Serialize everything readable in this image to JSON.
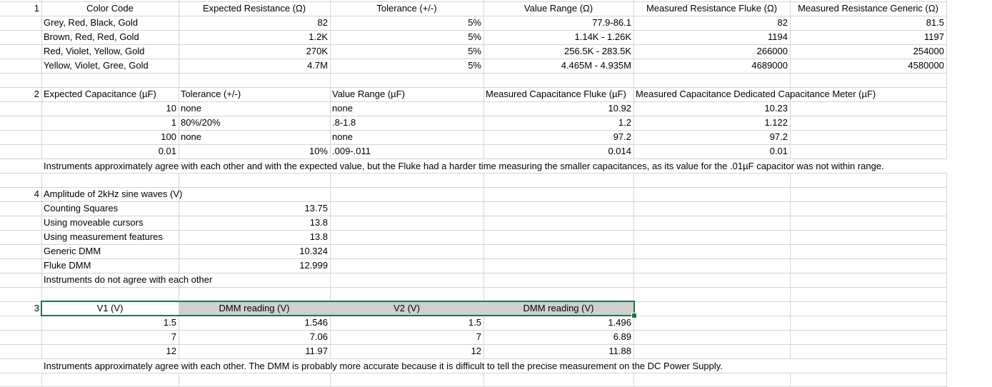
{
  "section1": {
    "num": "1",
    "headers": [
      "Color Code",
      "Expected Resistance (Ω)",
      "Tolerance (+/-)",
      "Value Range (Ω)",
      "Measured Resistance Fluke (Ω)",
      "Measured Resistance Generic (Ω)"
    ],
    "rows": [
      [
        "Grey, Red, Black, Gold",
        "82",
        "5%",
        "77.9-86.1",
        "82",
        "81.5"
      ],
      [
        "Brown, Red, Red, Gold",
        "1.2K",
        "5%",
        "1.14K - 1.26K",
        "1194",
        "1197"
      ],
      [
        "Red, Violet, Yellow, Gold",
        "270K",
        "5%",
        "256.5K - 283.5K",
        "266000",
        "254000"
      ],
      [
        "Yellow, Violet, Gree, Gold",
        "4.7M",
        "5%",
        "4.465M - 4.935M",
        "4689000",
        "4580000"
      ]
    ]
  },
  "section2": {
    "num": "2",
    "headers": [
      "Expected Capacitance (µF)",
      "Tolerance (+/-)",
      "Value Range (µF)",
      "Measured Capacitance Fluke (µF)",
      "Measured Capacitance Dedicated Capacitance Meter (µF)"
    ],
    "rows": [
      [
        "10",
        "none",
        "none",
        "10.92",
        "10.23"
      ],
      [
        "1",
        "80%/20%",
        ".8-1.8",
        "1.2",
        "1.122"
      ],
      [
        "100",
        "none",
        "none",
        "97.2",
        "97.2"
      ],
      [
        "0.01",
        "10%",
        ".009-.011",
        "0.014",
        "0.01"
      ]
    ],
    "note": "Instruments approximately agree with each other and with the expected value, but the Fluke had a harder time measuring the smaller capacitances, as its value for the .01µF capacitor was not within range."
  },
  "section4": {
    "num": "4",
    "title": "Amplitude of 2kHz sine waves (V)",
    "rows": [
      [
        "Counting Squares",
        "13.75"
      ],
      [
        "Using moveable cursors",
        "13.8"
      ],
      [
        "Using measurement features",
        "13.8"
      ],
      [
        "Generic DMM",
        "10.324"
      ],
      [
        "Fluke DMM",
        "12.999"
      ]
    ],
    "note": "Instruments do not agree with each other"
  },
  "section3": {
    "num": "3",
    "headers": [
      "V1 (V)",
      "DMM reading (V)",
      "V2 (V)",
      "DMM reading (V)"
    ],
    "rows": [
      [
        "1.5",
        "1.546",
        "1.5",
        "1.496"
      ],
      [
        "7",
        "7.06",
        "7",
        "6.89"
      ],
      [
        "12",
        "11.97",
        "12",
        "11.88"
      ]
    ],
    "note": "Instruments approximately agree with each other. The DMM is probably more accurate because it is difficult to tell the precise measurement on the DC Power Supply."
  },
  "colors": {
    "gridline": "#d4d4d4",
    "selection": "#217346",
    "header_fill": "#d0d0d0"
  }
}
